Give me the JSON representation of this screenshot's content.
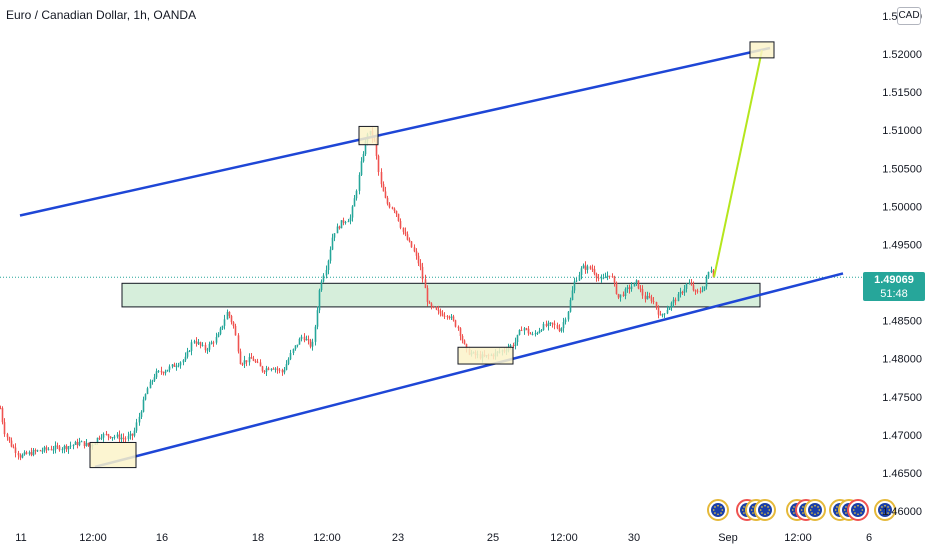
{
  "title": "Euro / Canadian Dollar, 1h, OANDA",
  "currency_badge": "CAD",
  "last_price": {
    "value": "1.49069",
    "countdown": "51:48"
  },
  "colors": {
    "up": "#26a69a",
    "down": "#ef5350",
    "channel": "#1e46d6",
    "projection": "#b5e61d",
    "zone_fill": "#d6eedb",
    "box_fill": "#fbf3c9"
  },
  "chart_data": {
    "type": "candlestick",
    "x_ticks": [
      "11",
      "12:00",
      "16",
      "18",
      "12:00",
      "23",
      "25",
      "12:00",
      "30",
      "Sep",
      "12:00",
      "6"
    ],
    "y_ticks": [
      "1.46000",
      "1.46500",
      "1.47000",
      "1.47500",
      "1.48000",
      "1.48500",
      "1.49000",
      "1.49500",
      "1.50000",
      "1.50500",
      "1.51000",
      "1.51500",
      "1.52000",
      "1.52500"
    ],
    "ylim": [
      1.4595,
      1.5255
    ],
    "grid": false,
    "price_path": [
      [
        0,
        1.4735
      ],
      [
        4,
        1.4705
      ],
      [
        10,
        1.4688
      ],
      [
        20,
        1.4672
      ],
      [
        35,
        1.4678
      ],
      [
        50,
        1.4682
      ],
      [
        65,
        1.4684
      ],
      [
        80,
        1.469
      ],
      [
        90,
        1.4685
      ],
      [
        100,
        1.47
      ],
      [
        115,
        1.4698
      ],
      [
        125,
        1.4695
      ],
      [
        133,
        1.47
      ],
      [
        140,
        1.473
      ],
      [
        147,
        1.476
      ],
      [
        155,
        1.478
      ],
      [
        165,
        1.4785
      ],
      [
        175,
        1.4792
      ],
      [
        185,
        1.48
      ],
      [
        193,
        1.4825
      ],
      [
        205,
        1.4812
      ],
      [
        218,
        1.483
      ],
      [
        227,
        1.4862
      ],
      [
        234,
        1.484
      ],
      [
        240,
        1.4795
      ],
      [
        252,
        1.48
      ],
      [
        262,
        1.4785
      ],
      [
        272,
        1.479
      ],
      [
        282,
        1.4782
      ],
      [
        292,
        1.481
      ],
      [
        302,
        1.483
      ],
      [
        312,
        1.4815
      ],
      [
        320,
        1.49
      ],
      [
        327,
        1.4925
      ],
      [
        333,
        1.4965
      ],
      [
        342,
        1.498
      ],
      [
        350,
        1.4985
      ],
      [
        356,
        1.502
      ],
      [
        362,
        1.5065
      ],
      [
        368,
        1.51
      ],
      [
        374,
        1.5085
      ],
      [
        380,
        1.503
      ],
      [
        386,
        1.5005
      ],
      [
        395,
        1.4995
      ],
      [
        403,
        1.4965
      ],
      [
        412,
        1.4945
      ],
      [
        420,
        1.492
      ],
      [
        428,
        1.487
      ],
      [
        438,
        1.486
      ],
      [
        448,
        1.4858
      ],
      [
        458,
        1.484
      ],
      [
        466,
        1.481
      ],
      [
        474,
        1.4805
      ],
      [
        484,
        1.4802
      ],
      [
        494,
        1.4806
      ],
      [
        504,
        1.4812
      ],
      [
        514,
        1.482
      ],
      [
        522,
        1.4842
      ],
      [
        532,
        1.483
      ],
      [
        542,
        1.4842
      ],
      [
        552,
        1.4845
      ],
      [
        560,
        1.4838
      ],
      [
        567,
        1.486
      ],
      [
        574,
        1.49
      ],
      [
        582,
        1.492
      ],
      [
        592,
        1.4918
      ],
      [
        600,
        1.4902
      ],
      [
        610,
        1.4912
      ],
      [
        618,
        1.488
      ],
      [
        628,
        1.4892
      ],
      [
        636,
        1.49
      ],
      [
        644,
        1.488
      ],
      [
        652,
        1.4878
      ],
      [
        660,
        1.4855
      ],
      [
        668,
        1.4868
      ],
      [
        678,
        1.4882
      ],
      [
        688,
        1.49
      ],
      [
        696,
        1.4885
      ],
      [
        704,
        1.4895
      ],
      [
        710,
        1.492
      ],
      [
        714,
        1.4907
      ]
    ],
    "channel_upper": [
      [
        20,
        1.4988
      ],
      [
        770,
        1.5208
      ]
    ],
    "channel_lower": [
      [
        95,
        1.4658
      ],
      [
        843,
        1.4912
      ]
    ],
    "support_zone": {
      "from_x": 122,
      "to_x": 760,
      "low": 1.4868,
      "high": 1.4899
    },
    "marked_boxes": [
      {
        "x_from": 90,
        "x_to": 136,
        "low": 1.4657,
        "high": 1.469
      },
      {
        "x_from": 359,
        "x_to": 378,
        "low": 1.5081,
        "high": 1.5105
      },
      {
        "x_from": 458,
        "x_to": 513,
        "low": 1.4793,
        "high": 1.4815
      },
      {
        "x_from": 750,
        "x_to": 774,
        "low": 1.5195,
        "high": 1.5216
      }
    ],
    "projection": [
      [
        714,
        1.4907
      ],
      [
        762,
        1.5205
      ]
    ],
    "last_price_line": 1.49069
  },
  "events": [
    "eu-flag-icon",
    "eu-flag-icon",
    "eu-flag-icon",
    "eu-flag-icon",
    "eu-flag-icon",
    "eu-flag-icon",
    "eu-flag-icon",
    "eu-flag-icon",
    "eu-flag-icon",
    "eu-flag-icon",
    "eu-flag-icon"
  ]
}
